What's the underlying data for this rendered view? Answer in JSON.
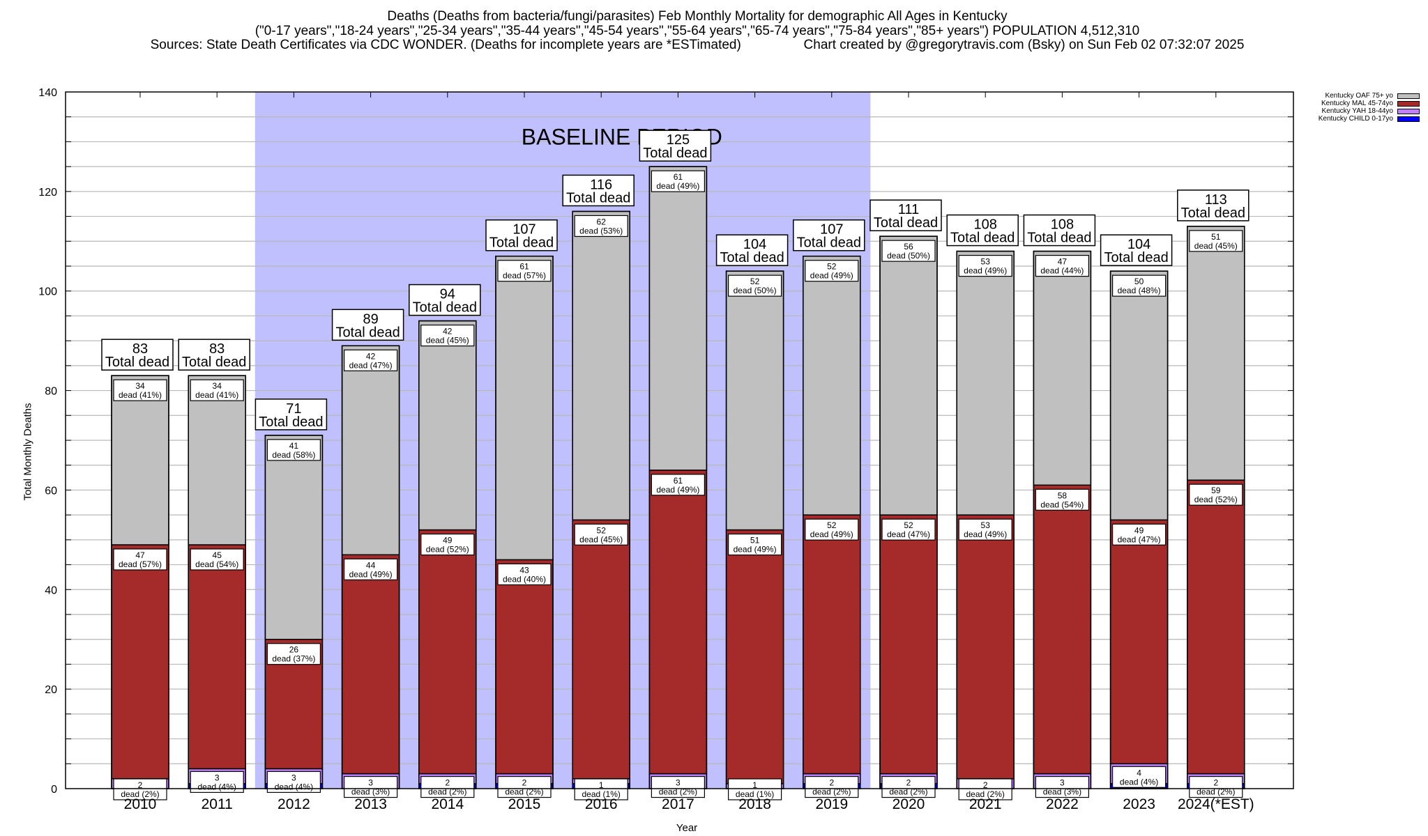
{
  "chart_data": {
    "type": "bar",
    "stacked": true,
    "title_lines": [
      "Deaths (Deaths from bacteria/fungi/parasites) Feb Monthly Mortality for demographic All Ages in Kentucky",
      "(\"0-17 years\",\"18-24 years\",\"25-34 years\",\"35-44 years\",\"45-54 years\",\"55-64 years\",\"65-74 years\",\"75-84 years\",\"85+ years\") POPULATION 4,512,310",
      "Sources: State Death Certificates via CDC WONDER. (Deaths for incomplete years are *ESTimated)                 Chart created by @gregorytravis.com (Bsky) on Sun Feb 02 07:32:07 2025"
    ],
    "xlabel": "Year",
    "ylabel": "Total Monthly Deaths",
    "ylim": [
      0,
      140
    ],
    "yticks": [
      0,
      20,
      40,
      60,
      80,
      100,
      120,
      140
    ],
    "minor_grid_step": 5,
    "grid": true,
    "legend_position": "top-right",
    "baseline_annotation": {
      "label": "BASELINE PERIOD",
      "from_category": "2012",
      "to_category": "2019",
      "color": "#c0c0ff"
    },
    "total_label_suffix": "Total dead",
    "segment_label_prefix": "dead",
    "categories": [
      "2010",
      "2011",
      "2012",
      "2013",
      "2014",
      "2015",
      "2016",
      "2017",
      "2018",
      "2019",
      "2020",
      "2021",
      "2022",
      "2023",
      "2024(*EST)"
    ],
    "totals": [
      83,
      83,
      71,
      89,
      94,
      107,
      116,
      125,
      104,
      107,
      111,
      108,
      108,
      104,
      113
    ],
    "series": [
      {
        "name": "Kentucky CHILD 0-17yo",
        "color": "#0000ff",
        "values": [
          0,
          1,
          1,
          0,
          1,
          1,
          1,
          0,
          0,
          1,
          1,
          0,
          0,
          1,
          1
        ],
        "labels": null
      },
      {
        "name": "Kentucky YAH 18-44yo",
        "color": "#c080ff",
        "values": [
          2,
          3,
          3,
          3,
          2,
          2,
          1,
          3,
          1,
          2,
          2,
          2,
          3,
          4,
          2
        ],
        "pct": [
          "2%",
          "4%",
          "4%",
          "3%",
          "2%",
          "2%",
          "1%",
          "2%",
          "1%",
          "2%",
          "2%",
          "2%",
          "3%",
          "4%",
          "2%"
        ]
      },
      {
        "name": "Kentucky MAL 45-74yo",
        "color": "#a52a2a",
        "values": [
          47,
          45,
          26,
          44,
          49,
          43,
          52,
          61,
          51,
          52,
          52,
          53,
          58,
          49,
          59
        ],
        "pct": [
          "57%",
          "54%",
          "37%",
          "49%",
          "52%",
          "40%",
          "45%",
          "49%",
          "49%",
          "49%",
          "47%",
          "49%",
          "54%",
          "47%",
          "52%"
        ]
      },
      {
        "name": "Kentucky OAF 75+ yo",
        "color": "#c0c0c0",
        "values": [
          34,
          34,
          41,
          42,
          42,
          61,
          62,
          61,
          52,
          52,
          56,
          53,
          47,
          50,
          51
        ],
        "pct": [
          "41%",
          "41%",
          "58%",
          "47%",
          "45%",
          "57%",
          "53%",
          "49%",
          "50%",
          "49%",
          "50%",
          "49%",
          "44%",
          "48%",
          "45%"
        ]
      }
    ]
  }
}
